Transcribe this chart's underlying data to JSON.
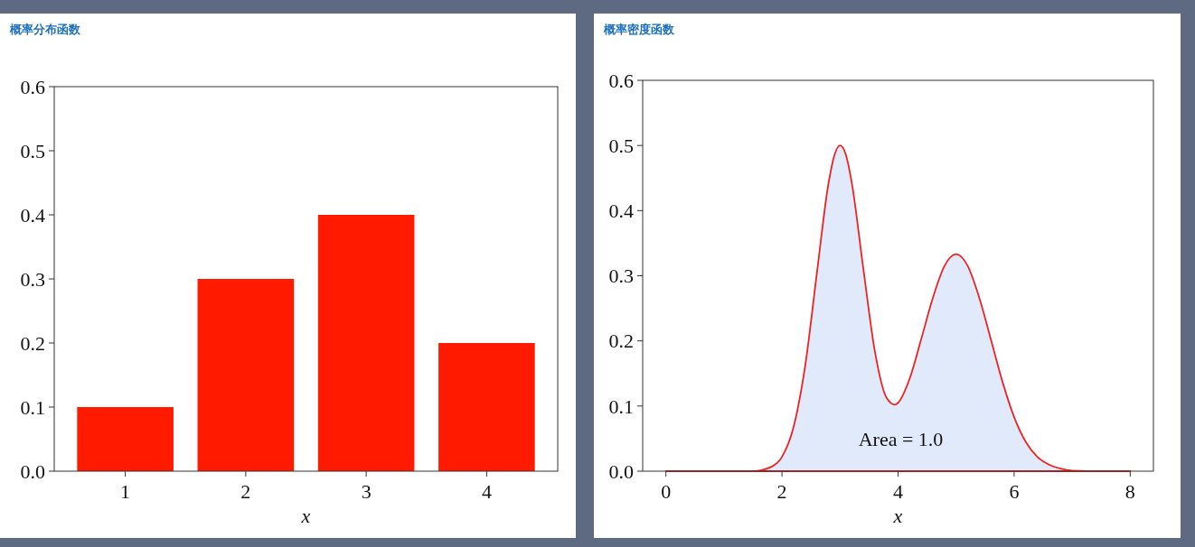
{
  "chart_data": [
    {
      "type": "bar",
      "title": "概率分布函数",
      "xlabel": "x",
      "categories": [
        "1",
        "2",
        "3",
        "4"
      ],
      "values": [
        0.1,
        0.3,
        0.4,
        0.2
      ],
      "color": "#ff1a00",
      "ylim": [
        0,
        0.6
      ],
      "yticks": [
        {
          "value": 0,
          "label": "0.0"
        },
        0.1,
        0.2,
        0.3,
        0.4,
        0.5,
        0.6
      ]
    },
    {
      "type": "line",
      "title": "概率密度函数",
      "xlabel": "x",
      "x": [
        0,
        1,
        1.5,
        1.8,
        2,
        2.2,
        2.4,
        2.6,
        2.8,
        2.9,
        3,
        3.1,
        3.2,
        3.4,
        3.6,
        3.8,
        3.95,
        4,
        4.2,
        4.4,
        4.6,
        4.8,
        5,
        5.2,
        5.4,
        5.6,
        5.8,
        6,
        6.2,
        6.4,
        6.6,
        6.8,
        7,
        7.5,
        8
      ],
      "series": [
        {
          "type": "area",
          "color": "#ee2222",
          "values": [
            0,
            0,
            0,
            0.006,
            0.022,
            0.068,
            0.162,
            0.303,
            0.441,
            0.484,
            0.5,
            0.486,
            0.444,
            0.312,
            0.184,
            0.113,
            0.102,
            0.105,
            0.142,
            0.203,
            0.266,
            0.315,
            0.333,
            0.315,
            0.266,
            0.202,
            0.137,
            0.083,
            0.045,
            0.022,
            0.01,
            0.004,
            0.001,
            0,
            0
          ]
        }
      ],
      "xlim": [
        -0.4,
        8.4
      ],
      "xticks": [
        0,
        2,
        4,
        6,
        8
      ],
      "ylim": [
        0,
        0.6
      ],
      "yticks": [
        {
          "value": 0,
          "label": "0.0"
        },
        0.1,
        0.2,
        0.3,
        0.4,
        0.5,
        0.6
      ],
      "annotations": [
        "Area = 1.0"
      ]
    }
  ]
}
